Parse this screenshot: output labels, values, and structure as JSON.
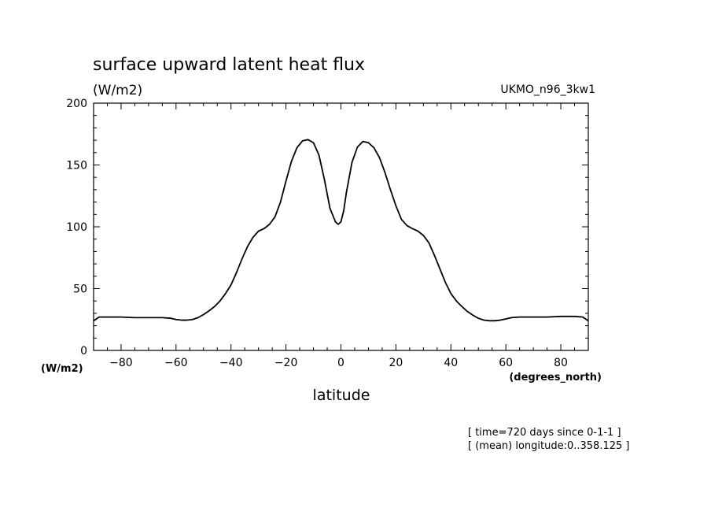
{
  "chart_data": {
    "type": "line",
    "title": "surface upward latent heat flux",
    "units": "(W/m2)",
    "model": "UKMO_n96_3kw1",
    "xlabel": "latitude",
    "x_units": "(degrees_north)",
    "y_units": "(W/m2)",
    "xlim": [
      -90,
      90
    ],
    "ylim": [
      0,
      200
    ],
    "xticks": [
      -80,
      -60,
      -40,
      -20,
      0,
      20,
      40,
      60,
      80
    ],
    "yticks": [
      0,
      50,
      100,
      150,
      200
    ],
    "notes": [
      "[ time=720 days since 0-1-1 ]",
      "[ (mean) longitude:0..358.125 ]"
    ],
    "series": [
      {
        "x": [
          -90,
          -88,
          -85,
          -80,
          -75,
          -70,
          -65,
          -62,
          -60,
          -58,
          -56,
          -54,
          -52,
          -50,
          -48,
          -46,
          -44,
          -42,
          -40,
          -38,
          -36,
          -34,
          -32,
          -30,
          -28,
          -26,
          -24,
          -22,
          -20,
          -18,
          -16,
          -14,
          -12,
          -10,
          -8,
          -6,
          -4,
          -2,
          -1,
          0,
          1,
          2,
          4,
          6,
          8,
          10,
          12,
          14,
          16,
          18,
          20,
          22,
          24,
          26,
          28,
          30,
          32,
          34,
          36,
          38,
          40,
          42,
          44,
          46,
          48,
          50,
          52,
          54,
          56,
          58,
          60,
          62,
          65,
          70,
          75,
          80,
          85,
          88,
          90
        ],
        "y": [
          24,
          27,
          27,
          27,
          26.5,
          26.5,
          26.5,
          26,
          25,
          24.5,
          24.5,
          25,
          26.5,
          29,
          32,
          35.5,
          40,
          46,
          53,
          63,
          74,
          84,
          91.5,
          96.5,
          98.5,
          102,
          108,
          120,
          137,
          153,
          164,
          169.5,
          170.5,
          168,
          158,
          138,
          115,
          104,
          102,
          104,
          113,
          128,
          152,
          164.5,
          169,
          168,
          164,
          156,
          144,
          130,
          117,
          106,
          101,
          98.5,
          96.5,
          93,
          87,
          77,
          66,
          55,
          46,
          40,
          35.5,
          31.5,
          28.5,
          26,
          24.5,
          24,
          24,
          24.5,
          25.5,
          26.5,
          27,
          27,
          27,
          27.5,
          27.5,
          27,
          24
        ]
      }
    ]
  }
}
